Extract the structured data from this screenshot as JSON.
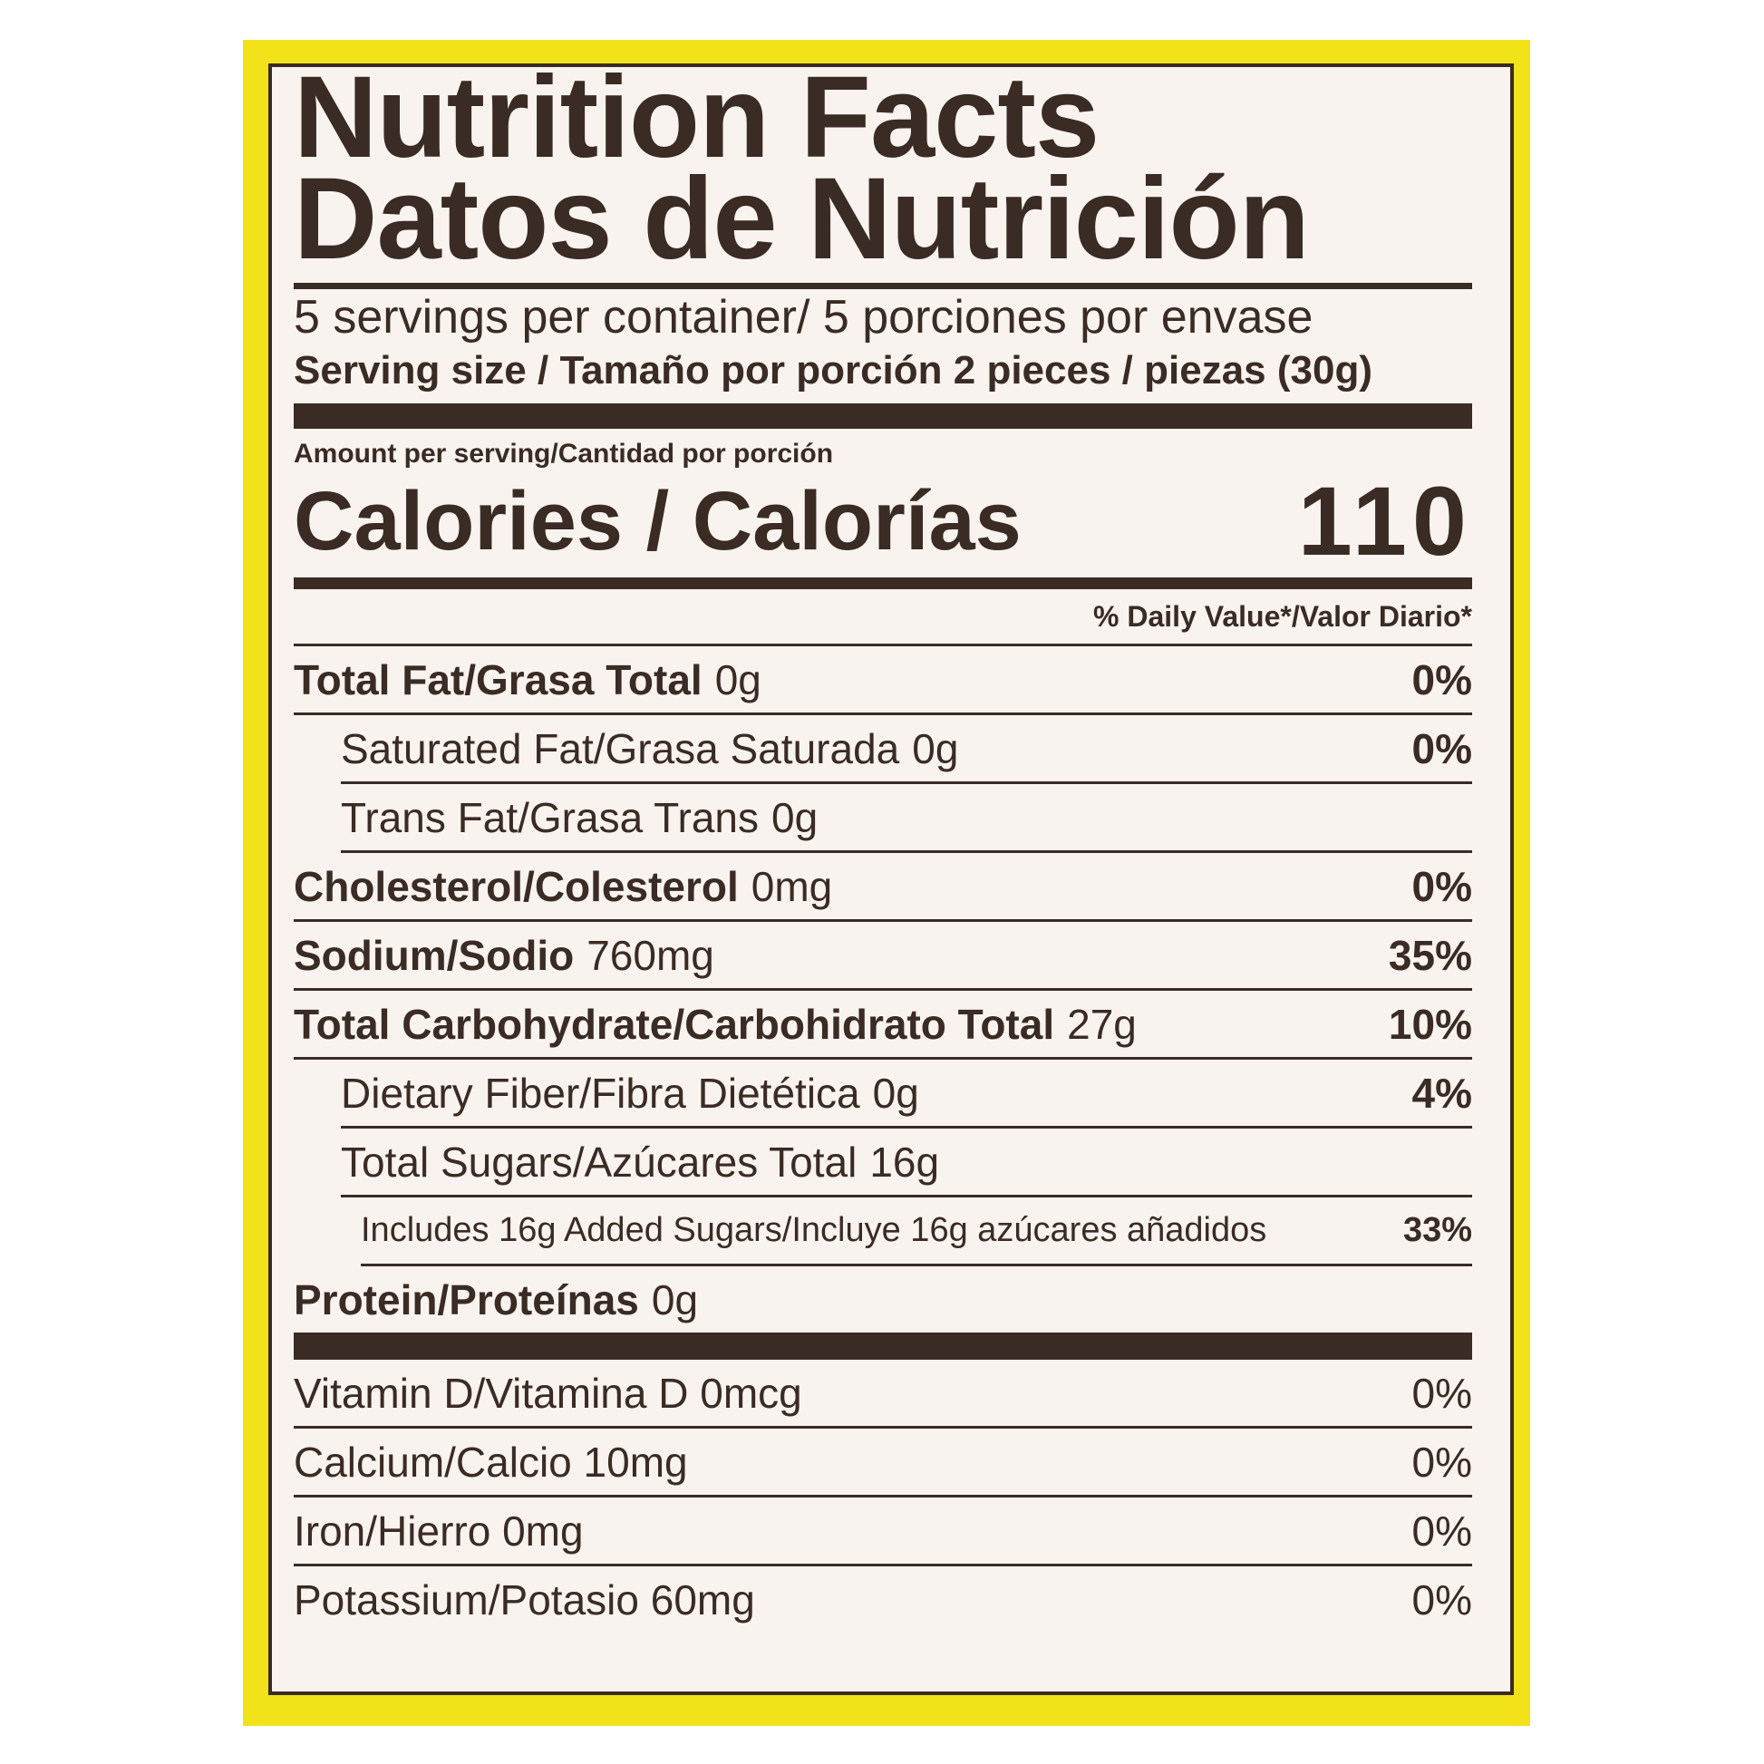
{
  "header": {
    "title": "Nutrition Facts",
    "title_es": "Datos de Nutrición"
  },
  "servings": "5 servings per container/ 5 porciones por envase",
  "serving_size": "Serving size / Tamaño por porción 2 pieces / piezas (30g)",
  "amount_per_serving": "Amount per serving/Cantidad por porción",
  "calories": {
    "label": "Calories / Calorías",
    "value": "110"
  },
  "daily_value_header": "% Daily Value*/Valor Diario*",
  "nutrients": [
    {
      "name": "Total Fat/Grasa Total",
      "amount": "0g",
      "dv": "0%"
    },
    {
      "name": "Saturated Fat/Grasa Saturada",
      "amount": "0g",
      "dv": "0%"
    },
    {
      "name": "Trans Fat/Grasa Trans",
      "amount": "0g"
    },
    {
      "name": "Cholesterol/Colesterol",
      "amount": "0mg",
      "dv": "0%"
    },
    {
      "name": "Sodium/Sodio",
      "amount": "760mg",
      "dv": "35%"
    },
    {
      "name": "Total Carbohydrate/Carbohidrato Total",
      "amount": "27g",
      "dv": "10%"
    },
    {
      "name": "Dietary Fiber/Fibra Dietética",
      "amount": "0g",
      "dv": "4%"
    },
    {
      "name": "Total Sugars/Azúcares Total",
      "amount": "16g"
    },
    {
      "name": "Includes 16g Added Sugars/Incluye 16g azúcares añadidos",
      "dv": "33%"
    },
    {
      "name": "Protein/Proteínas",
      "amount": "0g"
    }
  ],
  "vitamins": [
    {
      "name": "Vitamin D/Vitamina D 0mcg",
      "dv": "0%"
    },
    {
      "name": "Calcium/Calcio 10mg",
      "dv": "0%"
    },
    {
      "name": "Iron/Hierro 0mg",
      "dv": "0%"
    },
    {
      "name": "Potassium/Potasio 60mg",
      "dv": "0%"
    }
  ]
}
